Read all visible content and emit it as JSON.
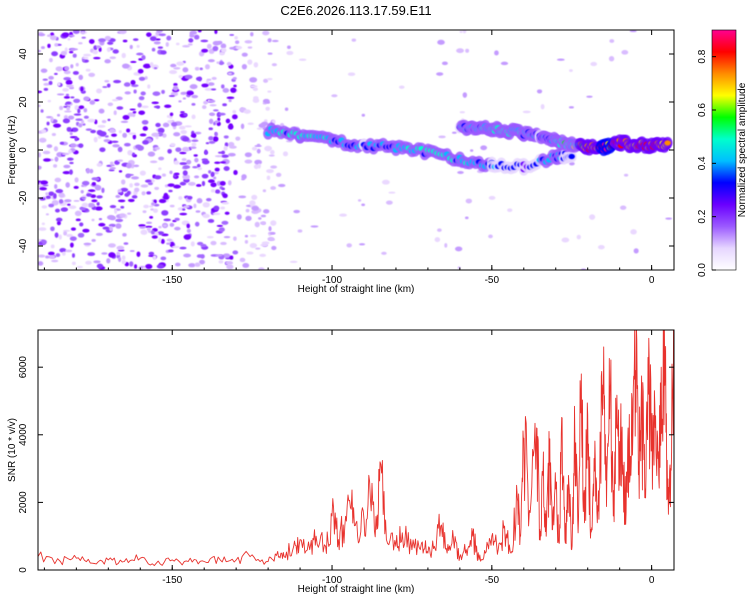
{
  "title": "C2E6.2026.113.17.59.E11",
  "colors": {
    "trace": "#e8322d",
    "axis": "#000000",
    "colormap": [
      "#ffffff",
      "#e6d6ff",
      "#9b59ff",
      "#6a00ff",
      "#0000ff",
      "#00bfff",
      "#00ffcc",
      "#00ff00",
      "#ffff00",
      "#ff8c00",
      "#ff0000",
      "#ff0090"
    ]
  },
  "chart_data": [
    {
      "type": "heatmap",
      "title": "C2E6.2026.113.17.59.E11",
      "xlabel": "Height of straight line (km)",
      "ylabel": "Frequency (Hz)",
      "xlim": [
        -192,
        7
      ],
      "ylim": [
        -50,
        50
      ],
      "xticks": [
        -150,
        -100,
        -50,
        0
      ],
      "xtick_labels": [
        "-150",
        "-100",
        "-50",
        "0"
      ],
      "yticks": [
        -40,
        -20,
        0,
        20,
        40
      ],
      "ytick_labels": [
        "-40",
        "-20",
        "0",
        "20",
        "40"
      ],
      "grid": false,
      "colorbar": {
        "label": "Normalized spectral amplitude",
        "range": [
          0,
          0.9
        ],
        "ticks": [
          0,
          0.2,
          0.4,
          0.6,
          0.8
        ],
        "tick_labels": [
          "0.0",
          "0.2",
          "0.4",
          "0.6",
          "0.8"
        ]
      },
      "ridges": [
        {
          "x": [
            -120,
            -110,
            -100,
            -90,
            -80,
            -70,
            -60,
            -50,
            -40,
            -30,
            -25
          ],
          "y": [
            8,
            6,
            4,
            2,
            1,
            -1,
            -4,
            -6,
            -7,
            -3,
            -2
          ],
          "amplitude": [
            0.4,
            0.45,
            0.4,
            0.35,
            0.4,
            0.45,
            0.45,
            0.35,
            0.3,
            0.4,
            0.3
          ]
        },
        {
          "x": [
            -60,
            -55,
            -50,
            -45,
            -40,
            -35,
            -30,
            -25,
            -20,
            -15,
            -10,
            -5,
            0,
            5
          ],
          "y": [
            10,
            9,
            9,
            8,
            7,
            6,
            4,
            2,
            1,
            1,
            3,
            2,
            2,
            2
          ],
          "amplitude": [
            0.35,
            0.4,
            0.45,
            0.45,
            0.4,
            0.35,
            0.45,
            0.5,
            0.7,
            0.85,
            0.8,
            0.75,
            0.8,
            0.75
          ]
        }
      ]
    },
    {
      "type": "line",
      "title": "",
      "xlabel": "Height of straight line (km)",
      "ylabel": "SNR (10 * v/v)",
      "xlim": [
        -192,
        7
      ],
      "ylim": [
        0,
        7100
      ],
      "xticks": [
        -150,
        -100,
        -50,
        0
      ],
      "xtick_labels": [
        "-150",
        "-100",
        "-50",
        "0"
      ],
      "yticks": [
        0,
        2000,
        4000,
        6000
      ],
      "ytick_labels": [
        "0",
        "2000",
        "4000",
        "6000"
      ],
      "grid": false,
      "series": [
        {
          "color": "#e8322d",
          "x": [
            -192,
            -185,
            -180,
            -175,
            -170,
            -165,
            -160,
            -155,
            -150,
            -145,
            -140,
            -135,
            -130,
            -125,
            -120,
            -117,
            -115,
            -112,
            -110,
            -107,
            -105,
            -102,
            -100,
            -98,
            -96,
            -94,
            -92,
            -90,
            -88,
            -86,
            -85,
            -83,
            -80,
            -78,
            -75,
            -72,
            -70,
            -68,
            -66,
            -64,
            -62,
            -60,
            -58,
            -56,
            -54,
            -52,
            -50,
            -48,
            -46,
            -44,
            -42,
            -41,
            -40,
            -38,
            -36,
            -35,
            -34,
            -33,
            -32,
            -31,
            -30,
            -29,
            -28,
            -27,
            -26,
            -25,
            -24,
            -23,
            -22,
            -21,
            -20,
            -19,
            -18,
            -17,
            -16,
            -15,
            -14,
            -13,
            -12,
            -11,
            -10,
            -9,
            -8,
            -7,
            -6,
            -5,
            -4,
            -3,
            -2,
            -1,
            0,
            1,
            2,
            3,
            4,
            5,
            6,
            7
          ],
          "y": [
            400,
            250,
            350,
            200,
            300,
            250,
            350,
            200,
            300,
            250,
            250,
            300,
            300,
            450,
            250,
            550,
            400,
            700,
            900,
            600,
            1000,
            700,
            1600,
            900,
            1300,
            1800,
            1000,
            1500,
            2100,
            1200,
            3200,
            900,
            700,
            1100,
            600,
            800,
            500,
            700,
            1300,
            500,
            900,
            400,
            600,
            1000,
            300,
            500,
            1000,
            600,
            1300,
            500,
            2100,
            1000,
            3900,
            1700,
            4200,
            1200,
            2800,
            1000,
            3100,
            1200,
            2400,
            800,
            4500,
            800,
            2800,
            600,
            3800,
            1100,
            5800,
            1400,
            4600,
            1200,
            3300,
            1400,
            3400,
            6600,
            2900,
            5300,
            1600,
            4200,
            3800,
            3100,
            1700,
            4600,
            3400,
            5900,
            3200,
            4400,
            2400,
            5200,
            3600,
            4900,
            3300,
            6000,
            7100,
            2100,
            3000,
            6800
          ]
        }
      ]
    }
  ]
}
